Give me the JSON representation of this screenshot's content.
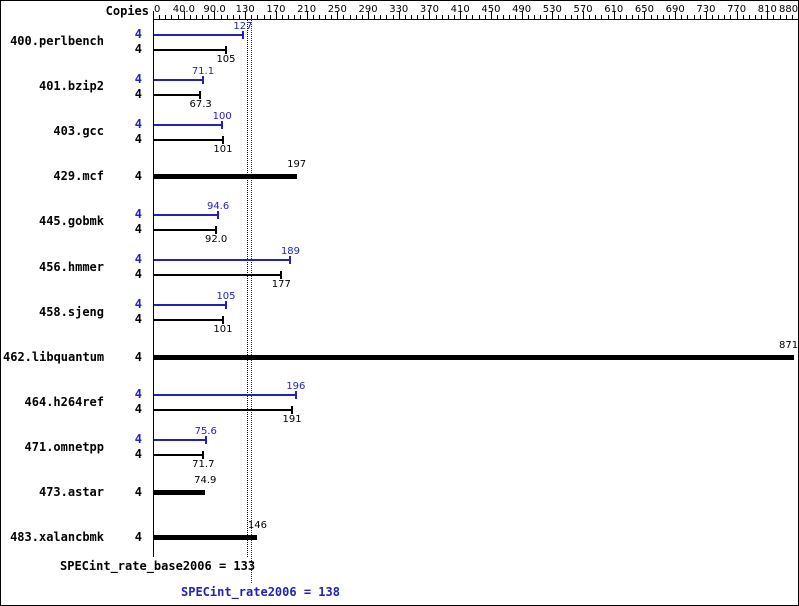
{
  "header": {
    "copies_label": "Copies"
  },
  "chart_data": {
    "type": "bar",
    "orientation": "horizontal",
    "axis_tick_labels": [
      "0",
      "40.0",
      "90.0",
      "130",
      "170",
      "210",
      "250",
      "290",
      "330",
      "370",
      "410",
      "450",
      "490",
      "530",
      "570",
      "610",
      "650",
      "690",
      "730",
      "770",
      "810",
      "880"
    ],
    "axis_tick_values": [
      0,
      40,
      90,
      130,
      170,
      210,
      250,
      290,
      330,
      370,
      410,
      450,
      490,
      530,
      570,
      610,
      650,
      690,
      730,
      770,
      810,
      880
    ],
    "legend": {
      "peak_series": "SPECint_rate2006 (peak, blue)",
      "base_series": "SPECint_rate_base2006 (base, black)"
    },
    "benchmarks": [
      {
        "name": "400.perlbench",
        "copies": "4",
        "peak": 127,
        "peak_label": "127",
        "base": 105,
        "base_label": "105",
        "bar_style": "thin-pair"
      },
      {
        "name": "401.bzip2",
        "copies": "4",
        "peak": 71.1,
        "peak_label": "71.1",
        "base": 67.3,
        "base_label": "67.3",
        "bar_style": "thin-pair"
      },
      {
        "name": "403.gcc",
        "copies": "4",
        "peak": 100,
        "peak_label": "100",
        "base": 101,
        "base_label": "101",
        "bar_style": "thin-pair"
      },
      {
        "name": "429.mcf",
        "copies": "4",
        "base": 197,
        "base_label": "197",
        "bar_style": "thick-single"
      },
      {
        "name": "445.gobmk",
        "copies": "4",
        "peak": 94.6,
        "peak_label": "94.6",
        "base": 92.0,
        "base_label": "92.0",
        "bar_style": "thin-pair"
      },
      {
        "name": "456.hmmer",
        "copies": "4",
        "peak": 189,
        "peak_label": "189",
        "base": 177,
        "base_label": "177",
        "bar_style": "thin-pair"
      },
      {
        "name": "458.sjeng",
        "copies": "4",
        "peak": 105,
        "peak_label": "105",
        "base": 101,
        "base_label": "101",
        "bar_style": "thin-pair"
      },
      {
        "name": "462.libquantum",
        "copies": "4",
        "base": 871,
        "base_label": "871",
        "bar_style": "thick-single"
      },
      {
        "name": "464.h264ref",
        "copies": "4",
        "peak": 196,
        "peak_label": "196",
        "base": 191,
        "base_label": "191",
        "bar_style": "thin-pair"
      },
      {
        "name": "471.omnetpp",
        "copies": "4",
        "peak": 75.6,
        "peak_label": "75.6",
        "base": 71.7,
        "base_label": "71.7",
        "bar_style": "thin-pair"
      },
      {
        "name": "473.astar",
        "copies": "4",
        "base": 74.9,
        "base_label": "74.9",
        "bar_style": "thick-single"
      },
      {
        "name": "483.xalancbmk",
        "copies": "4",
        "base": 146,
        "base_label": "146",
        "bar_style": "thick-single"
      }
    ],
    "summary": {
      "base_text": "SPECint_rate_base2006 = 133",
      "base_value": 133,
      "peak_text": "SPECint_rate2006 = 138",
      "peak_value": 138
    },
    "colors": {
      "peak_blue": "#2222bb",
      "base_black": "#000000"
    }
  }
}
